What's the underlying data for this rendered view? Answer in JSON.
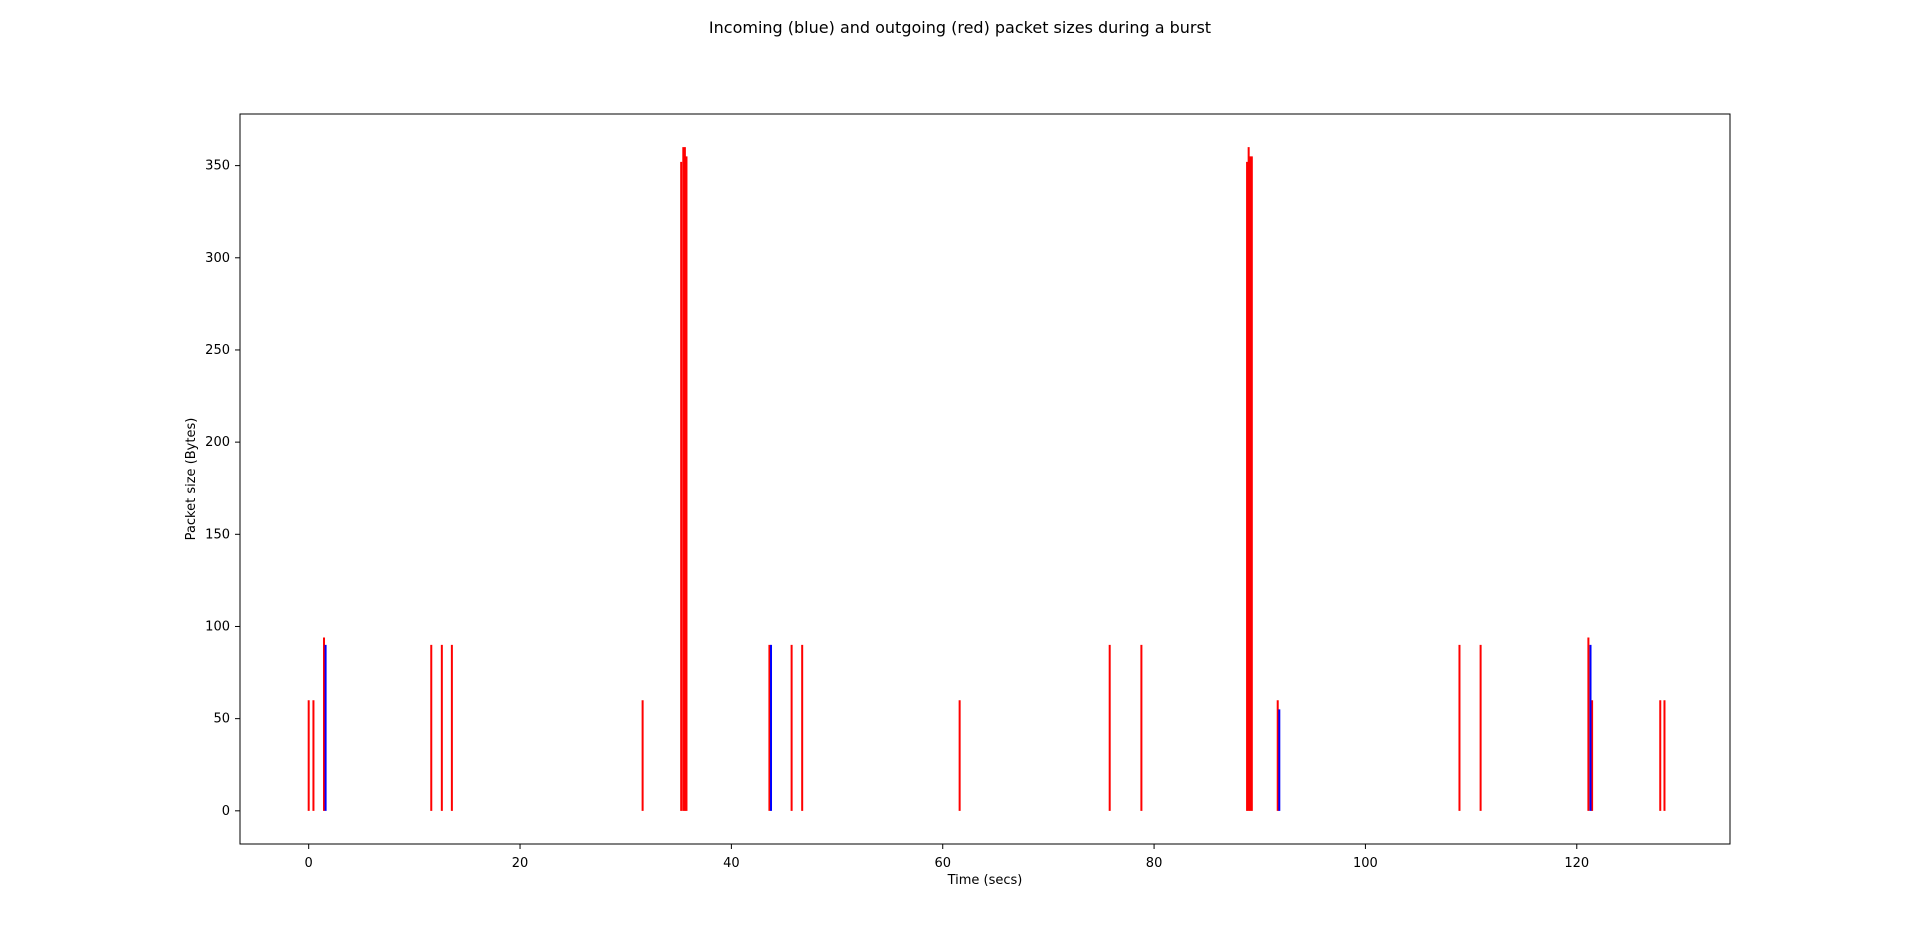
{
  "chart_data": {
    "type": "bar",
    "title": "Incoming (blue) and outgoing (red) packet sizes during a burst",
    "xlabel": "Time (secs)",
    "ylabel": "Packet size (Bytes)",
    "xlim": [
      -6.5,
      134.5
    ],
    "ylim": [
      -18,
      378
    ],
    "x_ticks": [
      0,
      20,
      40,
      60,
      80,
      100,
      120
    ],
    "y_ticks": [
      0,
      50,
      100,
      150,
      200,
      250,
      300,
      350
    ],
    "grid": false,
    "colors": {
      "outgoing": "#ff0000",
      "incoming": "#0000ff",
      "axis": "#000000"
    },
    "series": [
      {
        "color": "#ff0000",
        "points": [
          {
            "x": 0.0,
            "y": 60
          },
          {
            "x": 0.45,
            "y": 60
          },
          {
            "x": 1.45,
            "y": 94
          },
          {
            "x": 11.6,
            "y": 90
          },
          {
            "x": 12.6,
            "y": 90
          },
          {
            "x": 13.55,
            "y": 90
          },
          {
            "x": 31.6,
            "y": 60
          },
          {
            "x": 35.25,
            "y": 352
          },
          {
            "x": 35.45,
            "y": 360
          },
          {
            "x": 35.6,
            "y": 360
          },
          {
            "x": 35.75,
            "y": 355
          },
          {
            "x": 43.6,
            "y": 90
          },
          {
            "x": 45.7,
            "y": 90
          },
          {
            "x": 46.7,
            "y": 90
          },
          {
            "x": 61.6,
            "y": 60
          },
          {
            "x": 75.8,
            "y": 90
          },
          {
            "x": 78.8,
            "y": 90
          },
          {
            "x": 88.8,
            "y": 352
          },
          {
            "x": 88.95,
            "y": 360
          },
          {
            "x": 89.1,
            "y": 355
          },
          {
            "x": 89.25,
            "y": 355
          },
          {
            "x": 91.7,
            "y": 60
          },
          {
            "x": 108.9,
            "y": 90
          },
          {
            "x": 110.9,
            "y": 90
          },
          {
            "x": 121.1,
            "y": 94
          },
          {
            "x": 121.45,
            "y": 60
          },
          {
            "x": 127.9,
            "y": 60
          },
          {
            "x": 128.3,
            "y": 60
          }
        ]
      },
      {
        "color": "#0000ff",
        "points": [
          {
            "x": 1.6,
            "y": 90
          },
          {
            "x": 43.75,
            "y": 90
          },
          {
            "x": 91.85,
            "y": 55
          },
          {
            "x": 121.3,
            "y": 90
          }
        ]
      }
    ]
  }
}
